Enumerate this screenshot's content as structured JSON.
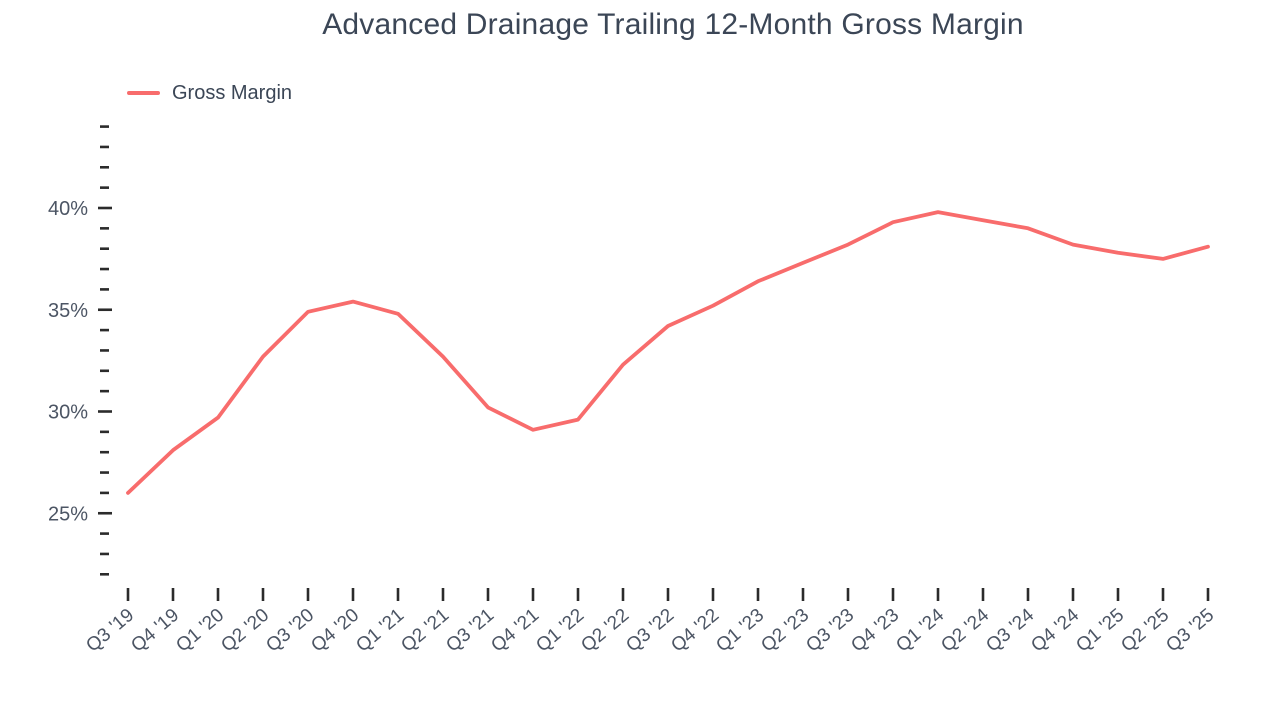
{
  "page": {
    "background": "#FFFFFF"
  },
  "chart_data": {
    "type": "line",
    "title": "Advanced Drainage Trailing 12-Month Gross Margin",
    "legend": {
      "position": "top-left",
      "entries": [
        "Gross Margin"
      ]
    },
    "categories": [
      "Q3 '19",
      "Q4 '19",
      "Q1 '20",
      "Q2 '20",
      "Q3 '20",
      "Q4 '20",
      "Q1 '21",
      "Q2 '21",
      "Q3 '21",
      "Q4 '21",
      "Q1 '22",
      "Q2 '22",
      "Q3 '22",
      "Q4 '22",
      "Q1 '23",
      "Q2 '23",
      "Q3 '23",
      "Q4 '23",
      "Q1 '24",
      "Q2 '24",
      "Q3 '24",
      "Q4 '24",
      "Q1 '25",
      "Q2 '25",
      "Q3 '25"
    ],
    "series": [
      {
        "name": "Gross Margin",
        "color": "#F86C6C",
        "values": [
          26.0,
          28.1,
          29.7,
          32.7,
          34.9,
          35.4,
          34.8,
          32.7,
          30.2,
          29.1,
          29.6,
          32.3,
          34.2,
          35.2,
          36.4,
          37.3,
          38.2,
          39.3,
          39.8,
          39.4,
          39.0,
          38.2,
          37.8,
          37.5,
          38.1
        ]
      }
    ],
    "yaxis": {
      "unit": "%",
      "labeled_values": [
        25,
        30,
        35,
        40
      ],
      "tick_labels": [
        "25%",
        "30%",
        "35%",
        "40%"
      ],
      "minor_tick_step": 1,
      "tick_range": [
        22,
        44
      ]
    },
    "xaxis": {
      "tick_per_category": true
    },
    "grid": false,
    "axis_lines": false,
    "colors": {
      "line": "#F86C6C",
      "title_text": "#3B4656",
      "axis_text": "#4C5564",
      "tick_marks": "#2B2B2B"
    }
  }
}
